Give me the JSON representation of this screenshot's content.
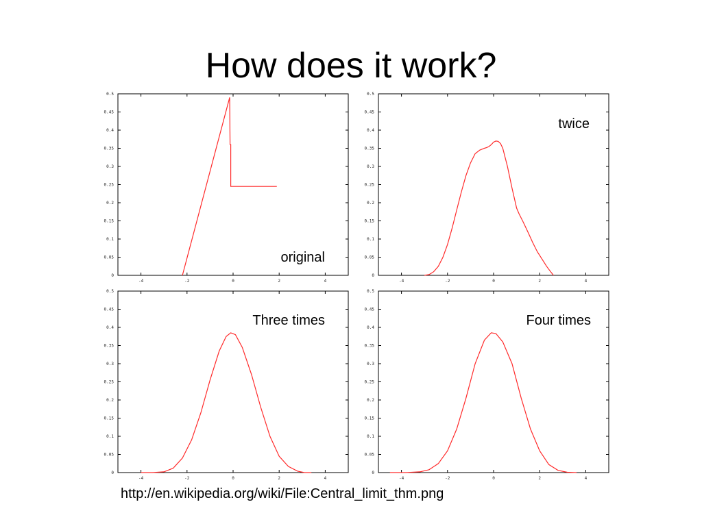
{
  "slide": {
    "title": "How does it work?",
    "source": "http://en.wikipedia.org/wiki/File:Central_limit_thm.png"
  },
  "colors": {
    "curve": "#ff2a2a",
    "frame": "#000000",
    "background": "#ffffff"
  },
  "chart_data": [
    {
      "type": "line",
      "annotation": "original",
      "xlim": [
        -5,
        5
      ],
      "ylim": [
        0,
        0.5
      ],
      "x_ticks": [
        -4,
        -2,
        0,
        2,
        4
      ],
      "y_ticks": [
        0,
        0.05,
        0.1,
        0.15,
        0.2,
        0.25,
        0.3,
        0.35,
        0.4,
        0.45,
        0.5
      ],
      "tick_labels_x": [
        "-4",
        "-2",
        "0",
        "2",
        "4"
      ],
      "tick_labels_y": [
        "0",
        "0.05",
        "0.1",
        "0.15",
        "0.2",
        "0.25",
        "0.3",
        "0.35",
        "0.4",
        "0.45",
        "0.5"
      ],
      "series": [
        {
          "x": [
            -2.2,
            -0.15,
            -0.13,
            -0.1,
            -0.1,
            1.9
          ],
          "y": [
            0,
            0.49,
            0.36,
            0.36,
            0.245,
            0.245
          ]
        }
      ]
    },
    {
      "type": "line",
      "annotation": "twice",
      "xlim": [
        -5,
        5
      ],
      "ylim": [
        0,
        0.5
      ],
      "x_ticks": [
        -4,
        -2,
        0,
        2,
        4
      ],
      "y_ticks": [
        0,
        0.05,
        0.1,
        0.15,
        0.2,
        0.25,
        0.3,
        0.35,
        0.4,
        0.45,
        0.5
      ],
      "tick_labels_x": [
        "-4",
        "-2",
        "0",
        "2",
        "4"
      ],
      "tick_labels_y": [
        "0",
        "0.05",
        "0.1",
        "0.15",
        "0.2",
        "0.25",
        "0.3",
        "0.35",
        "0.4",
        "0.45",
        "0.5"
      ],
      "series": [
        {
          "x": [
            -3.0,
            -2.8,
            -2.6,
            -2.4,
            -2.2,
            -2.0,
            -1.8,
            -1.6,
            -1.4,
            -1.2,
            -1.0,
            -0.8,
            -0.6,
            -0.4,
            -0.3,
            -0.2,
            -0.1,
            0,
            0.1,
            0.2,
            0.3,
            0.4,
            0.6,
            0.8,
            1.0,
            1.1,
            1.3,
            1.5,
            1.7,
            1.9,
            2.1,
            2.3,
            2.5,
            2.6
          ],
          "y": [
            0,
            0.002,
            0.01,
            0.025,
            0.05,
            0.085,
            0.13,
            0.18,
            0.23,
            0.275,
            0.31,
            0.335,
            0.345,
            0.35,
            0.352,
            0.355,
            0.36,
            0.367,
            0.37,
            0.369,
            0.363,
            0.35,
            0.3,
            0.24,
            0.185,
            0.17,
            0.145,
            0.118,
            0.09,
            0.065,
            0.045,
            0.025,
            0.008,
            0
          ]
        }
      ]
    },
    {
      "type": "line",
      "annotation": "Three times",
      "xlim": [
        -5,
        5
      ],
      "ylim": [
        0,
        0.5
      ],
      "x_ticks": [
        -4,
        -2,
        0,
        2,
        4
      ],
      "y_ticks": [
        0,
        0.05,
        0.1,
        0.15,
        0.2,
        0.25,
        0.3,
        0.35,
        0.4,
        0.45,
        0.5
      ],
      "tick_labels_x": [
        "-4",
        "-2",
        "0",
        "2",
        "4"
      ],
      "tick_labels_y": [
        "0",
        "0.05",
        "0.1",
        "0.15",
        "0.2",
        "0.25",
        "0.3",
        "0.35",
        "0.4",
        "0.45",
        "0.5"
      ],
      "series": [
        {
          "x": [
            -4.0,
            -3.5,
            -3.0,
            -2.6,
            -2.2,
            -1.8,
            -1.4,
            -1.0,
            -0.6,
            -0.3,
            -0.1,
            0.1,
            0.4,
            0.8,
            1.2,
            1.6,
            2.0,
            2.4,
            2.8,
            3.1,
            3.4
          ],
          "y": [
            0,
            0,
            0.002,
            0.012,
            0.04,
            0.09,
            0.165,
            0.255,
            0.335,
            0.375,
            0.385,
            0.38,
            0.345,
            0.27,
            0.18,
            0.1,
            0.045,
            0.017,
            0.004,
            0,
            0
          ]
        }
      ]
    },
    {
      "type": "line",
      "annotation": "Four times",
      "xlim": [
        -5,
        5
      ],
      "ylim": [
        0,
        0.5
      ],
      "x_ticks": [
        -4,
        -2,
        0,
        2,
        4
      ],
      "y_ticks": [
        0,
        0.05,
        0.1,
        0.15,
        0.2,
        0.25,
        0.3,
        0.35,
        0.4,
        0.45,
        0.5
      ],
      "tick_labels_x": [
        "-4",
        "-2",
        "0",
        "2",
        "4"
      ],
      "tick_labels_y": [
        "0",
        "0.05",
        "0.1",
        "0.15",
        "0.2",
        "0.25",
        "0.3",
        "0.35",
        "0.4",
        "0.45",
        "0.5"
      ],
      "series": [
        {
          "x": [
            -4.5,
            -3.8,
            -3.2,
            -2.8,
            -2.4,
            -2.0,
            -1.6,
            -1.2,
            -0.8,
            -0.4,
            -0.1,
            0.1,
            0.4,
            0.8,
            1.2,
            1.6,
            2.0,
            2.4,
            2.8,
            3.2,
            3.6
          ],
          "y": [
            0,
            0,
            0.002,
            0.008,
            0.025,
            0.06,
            0.12,
            0.205,
            0.3,
            0.365,
            0.385,
            0.383,
            0.36,
            0.3,
            0.205,
            0.12,
            0.06,
            0.022,
            0.006,
            0.001,
            0
          ]
        }
      ]
    }
  ]
}
